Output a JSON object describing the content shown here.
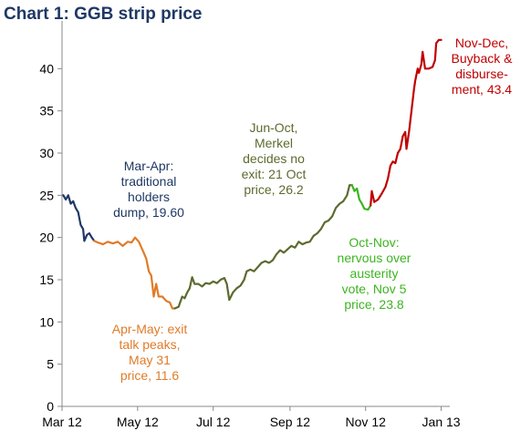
{
  "chart_data": {
    "type": "line",
    "title": "Chart 1: GGB strip price",
    "xlabel": "",
    "ylabel": "",
    "ylim": [
      0,
      45
    ],
    "y_ticks": [
      0,
      5,
      10,
      15,
      20,
      25,
      30,
      35,
      40
    ],
    "x_range": [
      "2012-03-01",
      "2013-01-05"
    ],
    "x_ticks": [
      {
        "label": "Mar 12",
        "date": "2012-03-01"
      },
      {
        "label": "May 12",
        "date": "2012-05-01"
      },
      {
        "label": "Jul 12",
        "date": "2012-07-01"
      },
      {
        "label": "Sep 12",
        "date": "2012-09-01"
      },
      {
        "label": "Nov 12",
        "date": "2012-11-01"
      },
      {
        "label": "Jan 13",
        "date": "2013-01-01"
      }
    ],
    "grid": false,
    "legend": "none",
    "series": [
      {
        "color": "#1f3864",
        "points": [
          [
            "2012-03-02",
            25.0
          ],
          [
            "2012-03-04",
            24.5
          ],
          [
            "2012-03-06",
            25.0
          ],
          [
            "2012-03-08",
            24.0
          ],
          [
            "2012-03-10",
            24.3
          ],
          [
            "2012-03-12",
            23.5
          ],
          [
            "2012-03-14",
            23.0
          ],
          [
            "2012-03-16",
            21.5
          ],
          [
            "2012-03-18",
            21.0
          ],
          [
            "2012-03-19",
            19.6
          ],
          [
            "2012-03-21",
            20.3
          ],
          [
            "2012-03-23",
            20.5
          ],
          [
            "2012-03-25",
            20.0
          ],
          [
            "2012-03-27",
            19.6
          ]
        ]
      },
      {
        "color": "#e07b28",
        "points": [
          [
            "2012-03-27",
            19.6
          ],
          [
            "2012-03-30",
            19.4
          ],
          [
            "2012-04-03",
            19.2
          ],
          [
            "2012-04-07",
            19.5
          ],
          [
            "2012-04-11",
            19.3
          ],
          [
            "2012-04-15",
            19.5
          ],
          [
            "2012-04-19",
            19.0
          ],
          [
            "2012-04-23",
            19.5
          ],
          [
            "2012-04-26",
            19.4
          ],
          [
            "2012-04-29",
            20.0
          ],
          [
            "2012-05-02",
            19.5
          ],
          [
            "2012-05-05",
            18.5
          ],
          [
            "2012-05-08",
            17.5
          ],
          [
            "2012-05-10",
            16.0
          ],
          [
            "2012-05-12",
            15.5
          ],
          [
            "2012-05-14",
            13.0
          ],
          [
            "2012-05-16",
            14.5
          ],
          [
            "2012-05-18",
            13.0
          ],
          [
            "2012-05-21",
            13.0
          ],
          [
            "2012-05-24",
            12.5
          ],
          [
            "2012-05-27",
            12.3
          ],
          [
            "2012-05-29",
            11.6
          ],
          [
            "2012-05-31",
            11.6
          ]
        ]
      },
      {
        "color": "#5c6a2e",
        "points": [
          [
            "2012-05-31",
            11.6
          ],
          [
            "2012-06-03",
            11.8
          ],
          [
            "2012-06-06",
            13.0
          ],
          [
            "2012-06-08",
            12.8
          ],
          [
            "2012-06-10",
            13.5
          ],
          [
            "2012-06-12",
            14.0
          ],
          [
            "2012-06-14",
            15.3
          ],
          [
            "2012-06-16",
            14.5
          ],
          [
            "2012-06-19",
            14.5
          ],
          [
            "2012-06-22",
            14.2
          ],
          [
            "2012-06-25",
            14.6
          ],
          [
            "2012-06-28",
            14.5
          ],
          [
            "2012-07-01",
            14.8
          ],
          [
            "2012-07-04",
            14.6
          ],
          [
            "2012-07-07",
            15.0
          ],
          [
            "2012-07-10",
            15.2
          ],
          [
            "2012-07-12",
            14.5
          ],
          [
            "2012-07-14",
            12.6
          ],
          [
            "2012-07-17",
            13.5
          ],
          [
            "2012-07-20",
            14.0
          ],
          [
            "2012-07-23",
            14.3
          ],
          [
            "2012-07-26",
            15.0
          ],
          [
            "2012-07-28",
            16.0
          ],
          [
            "2012-07-31",
            16.2
          ],
          [
            "2012-08-03",
            16.0
          ],
          [
            "2012-08-06",
            16.5
          ],
          [
            "2012-08-09",
            17.0
          ],
          [
            "2012-08-12",
            17.2
          ],
          [
            "2012-08-15",
            17.0
          ],
          [
            "2012-08-18",
            17.3
          ],
          [
            "2012-08-21",
            18.0
          ],
          [
            "2012-08-24",
            18.5
          ],
          [
            "2012-08-27",
            18.2
          ],
          [
            "2012-08-30",
            18.6
          ],
          [
            "2012-09-02",
            19.0
          ],
          [
            "2012-09-05",
            18.8
          ],
          [
            "2012-09-08",
            19.5
          ],
          [
            "2012-09-11",
            19.2
          ],
          [
            "2012-09-14",
            19.4
          ],
          [
            "2012-09-17",
            19.5
          ],
          [
            "2012-09-20",
            20.2
          ],
          [
            "2012-09-23",
            20.5
          ],
          [
            "2012-09-26",
            21.0
          ],
          [
            "2012-09-29",
            21.8
          ],
          [
            "2012-10-02",
            22.0
          ],
          [
            "2012-10-05",
            22.5
          ],
          [
            "2012-10-08",
            23.5
          ],
          [
            "2012-10-11",
            24.0
          ],
          [
            "2012-10-14",
            24.3
          ],
          [
            "2012-10-17",
            25.0
          ],
          [
            "2012-10-19",
            26.2
          ],
          [
            "2012-10-21",
            26.2
          ]
        ]
      },
      {
        "color": "#3cb521",
        "points": [
          [
            "2012-10-21",
            26.2
          ],
          [
            "2012-10-23",
            25.5
          ],
          [
            "2012-10-25",
            25.8
          ],
          [
            "2012-10-27",
            24.5
          ],
          [
            "2012-10-29",
            24.0
          ],
          [
            "2012-10-31",
            23.4
          ],
          [
            "2012-11-03",
            23.3
          ],
          [
            "2012-11-05",
            23.8
          ]
        ]
      },
      {
        "color": "#c00000",
        "points": [
          [
            "2012-11-05",
            23.8
          ],
          [
            "2012-11-06",
            25.5
          ],
          [
            "2012-11-08",
            24.2
          ],
          [
            "2012-11-11",
            24.5
          ],
          [
            "2012-11-14",
            25.2
          ],
          [
            "2012-11-17",
            26.0
          ],
          [
            "2012-11-19",
            27.0
          ],
          [
            "2012-11-21",
            28.5
          ],
          [
            "2012-11-23",
            29.0
          ],
          [
            "2012-11-25",
            28.8
          ],
          [
            "2012-11-27",
            30.0
          ],
          [
            "2012-11-29",
            30.5
          ],
          [
            "2012-12-01",
            32.0
          ],
          [
            "2012-12-03",
            32.5
          ],
          [
            "2012-12-04",
            30.5
          ],
          [
            "2012-12-06",
            32.5
          ],
          [
            "2012-12-08",
            35.0
          ],
          [
            "2012-12-10",
            37.5
          ],
          [
            "2012-12-11",
            38.5
          ],
          [
            "2012-12-13",
            40.0
          ],
          [
            "2012-12-14",
            39.5
          ],
          [
            "2012-12-16",
            40.5
          ],
          [
            "2012-12-17",
            42.0
          ],
          [
            "2012-12-19",
            40.0
          ],
          [
            "2012-12-22",
            40.0
          ],
          [
            "2012-12-25",
            40.2
          ],
          [
            "2012-12-27",
            41.0
          ],
          [
            "2012-12-28",
            43.0
          ],
          [
            "2012-12-30",
            43.4
          ],
          [
            "2013-01-01",
            43.4
          ]
        ]
      }
    ],
    "annotations": [
      {
        "id": "mar-apr",
        "color": "#1f3864",
        "lines": [
          "Mar-Apr:",
          "traditional",
          "holders",
          "dump, 19.60"
        ]
      },
      {
        "id": "apr-may",
        "color": "#e07b28",
        "lines": [
          "Apr-May: exit",
          "talk peaks,",
          "May 31",
          "price, 11.6"
        ]
      },
      {
        "id": "jun-oct",
        "color": "#5c6a2e",
        "lines": [
          "Jun-Oct,",
          "Merkel",
          "decides no",
          "exit: 21 Oct",
          "price, 26.2"
        ]
      },
      {
        "id": "oct-nov",
        "color": "#3cb521",
        "lines": [
          "Oct-Nov:",
          "nervous over",
          "austerity",
          "vote, Nov 5",
          "price, 23.8"
        ]
      },
      {
        "id": "nov-dec",
        "color": "#c00000",
        "lines": [
          "Nov-Dec,",
          "Buyback &",
          "disburse-",
          "ment, 43.4"
        ]
      }
    ]
  }
}
